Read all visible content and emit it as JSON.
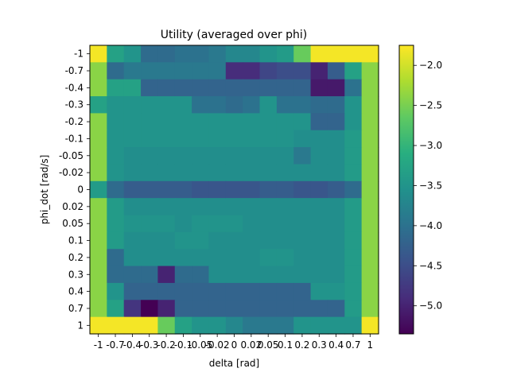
{
  "chart_data": {
    "type": "heatmap",
    "title": "Utility (averaged over phi)",
    "xlabel": "delta [rad]",
    "ylabel": "phi_dot [rad/s]",
    "x_ticks": [
      "-1",
      "-0.7",
      "-0.4",
      "-0.3",
      "-0.2",
      "-0.1",
      "-0.05",
      "-0.02",
      "0",
      "0.02",
      "0.05",
      "0.1",
      "0.2",
      "0.3",
      "0.4",
      "0.7",
      "1"
    ],
    "y_ticks": [
      "-1",
      "-0.7",
      "-0.4",
      "-0.3",
      "-0.2",
      "-0.1",
      "-0.05",
      "-0.02",
      "0",
      "0.02",
      "0.05",
      "0.1",
      "0.2",
      "0.3",
      "0.4",
      "0.7",
      "1"
    ],
    "colorbar": {
      "colormap": "viridis",
      "vmin": -5.35,
      "vmax": -1.75,
      "ticks": [
        "-2.0",
        "-2.5",
        "-3.0",
        "-3.5",
        "-4.0",
        "-4.5",
        "-5.0"
      ],
      "tick_values": [
        -2.0,
        -2.5,
        -3.0,
        -3.5,
        -4.0,
        -4.5,
        -5.0
      ]
    },
    "values": [
      [
        -1.8,
        -3.3,
        -3.5,
        -4.1,
        -4.1,
        -4.0,
        -4.0,
        -3.9,
        -3.7,
        -3.7,
        -3.5,
        -3.4,
        -2.6,
        -1.8,
        -1.8,
        -1.8,
        -1.8
      ],
      [
        -2.4,
        -4.1,
        -3.9,
        -3.9,
        -3.9,
        -3.9,
        -3.9,
        -3.9,
        -4.9,
        -4.9,
        -4.6,
        -4.5,
        -4.5,
        -5.0,
        -4.3,
        -3.3,
        -2.4
      ],
      [
        -2.4,
        -3.3,
        -3.3,
        -4.2,
        -4.2,
        -4.2,
        -4.2,
        -4.2,
        -4.2,
        -4.2,
        -4.2,
        -4.2,
        -4.2,
        -5.1,
        -5.1,
        -4.0,
        -2.4
      ],
      [
        -3.3,
        -3.5,
        -3.5,
        -3.5,
        -3.5,
        -3.5,
        -4.0,
        -4.0,
        -4.1,
        -4.0,
        -3.5,
        -4.0,
        -4.0,
        -4.1,
        -4.1,
        -3.5,
        -2.4
      ],
      [
        -2.4,
        -3.5,
        -3.5,
        -3.5,
        -3.5,
        -3.5,
        -3.5,
        -3.5,
        -3.5,
        -3.5,
        -3.5,
        -3.5,
        -3.5,
        -4.2,
        -4.2,
        -3.5,
        -2.4
      ],
      [
        -2.4,
        -3.5,
        -3.5,
        -3.5,
        -3.5,
        -3.5,
        -3.5,
        -3.5,
        -3.5,
        -3.5,
        -3.5,
        -3.5,
        -3.6,
        -3.6,
        -3.6,
        -3.4,
        -2.4
      ],
      [
        -2.4,
        -3.5,
        -3.6,
        -3.6,
        -3.6,
        -3.6,
        -3.6,
        -3.6,
        -3.6,
        -3.6,
        -3.6,
        -3.6,
        -3.9,
        -3.6,
        -3.6,
        -3.4,
        -2.4
      ],
      [
        -2.4,
        -3.5,
        -3.6,
        -3.6,
        -3.6,
        -3.6,
        -3.6,
        -3.6,
        -3.6,
        -3.6,
        -3.6,
        -3.6,
        -3.6,
        -3.6,
        -3.6,
        -3.4,
        -2.4
      ],
      [
        -3.4,
        -4.1,
        -4.3,
        -4.3,
        -4.3,
        -4.3,
        -4.4,
        -4.4,
        -4.4,
        -4.4,
        -4.3,
        -4.3,
        -4.4,
        -4.4,
        -4.3,
        -4.1,
        -2.4
      ],
      [
        -2.4,
        -3.4,
        -3.6,
        -3.6,
        -3.6,
        -3.6,
        -3.6,
        -3.6,
        -3.6,
        -3.6,
        -3.6,
        -3.6,
        -3.6,
        -3.6,
        -3.6,
        -3.4,
        -2.4
      ],
      [
        -2.4,
        -3.4,
        -3.5,
        -3.5,
        -3.5,
        -3.6,
        -3.5,
        -3.5,
        -3.5,
        -3.6,
        -3.6,
        -3.6,
        -3.6,
        -3.6,
        -3.6,
        -3.4,
        -2.4
      ],
      [
        -2.4,
        -3.4,
        -3.6,
        -3.6,
        -3.6,
        -3.5,
        -3.5,
        -3.6,
        -3.6,
        -3.6,
        -3.6,
        -3.6,
        -3.6,
        -3.6,
        -3.6,
        -3.4,
        -2.4
      ],
      [
        -2.4,
        -4.1,
        -3.6,
        -3.6,
        -3.6,
        -3.6,
        -3.6,
        -3.6,
        -3.6,
        -3.6,
        -3.5,
        -3.5,
        -3.6,
        -3.6,
        -3.6,
        -3.4,
        -2.4
      ],
      [
        -2.4,
        -4.1,
        -4.1,
        -4.1,
        -5.0,
        -4.1,
        -4.1,
        -3.6,
        -3.6,
        -3.6,
        -3.6,
        -3.6,
        -3.6,
        -3.6,
        -3.6,
        -3.4,
        -2.4
      ],
      [
        -2.4,
        -3.5,
        -4.2,
        -4.2,
        -4.2,
        -4.2,
        -4.2,
        -4.2,
        -4.2,
        -4.2,
        -4.2,
        -4.2,
        -4.2,
        -3.5,
        -3.5,
        -3.4,
        -2.4
      ],
      [
        -2.4,
        -3.3,
        -4.8,
        -5.35,
        -5.0,
        -4.2,
        -4.2,
        -4.2,
        -4.2,
        -4.2,
        -4.2,
        -4.2,
        -4.2,
        -4.2,
        -4.2,
        -3.4,
        -2.4
      ],
      [
        -1.8,
        -1.8,
        -1.8,
        -1.8,
        -2.6,
        -3.3,
        -3.5,
        -3.5,
        -3.7,
        -3.9,
        -3.9,
        -3.9,
        -3.5,
        -3.5,
        -3.5,
        -3.5,
        -1.8
      ]
    ]
  }
}
